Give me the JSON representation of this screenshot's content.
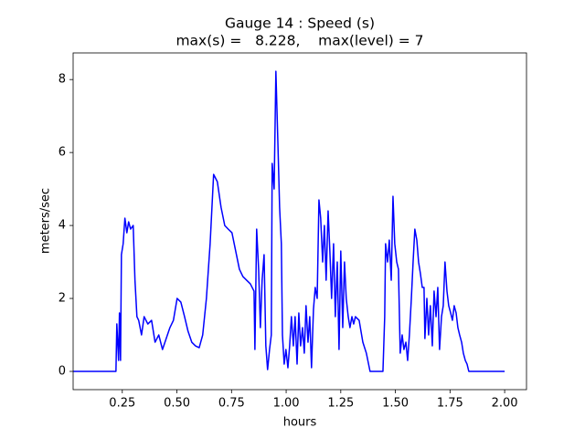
{
  "chart_data": {
    "type": "line",
    "title": "Gauge 14 : Speed (s)",
    "subtitle": "max(s) =   8.228,    max(level) = 7",
    "x_label": "hours",
    "y_label": "meters/sec",
    "color": "#0000ff",
    "grid": false,
    "xlim": [
      0.025,
      2.1
    ],
    "ylim": [
      -0.5,
      8.73
    ],
    "xticks": [
      0.25,
      {
        "value": 0.5,
        "label": "0.50"
      },
      0.75,
      {
        "value": 1.0,
        "label": "1.00"
      },
      1.25,
      {
        "value": 1.5,
        "label": "1.50"
      },
      1.75,
      {
        "value": 2.0,
        "label": "2.00"
      }
    ],
    "yticks": [
      0,
      2,
      4,
      6,
      8
    ],
    "x": [
      0.025,
      0.221,
      0.225,
      0.233,
      0.237,
      0.242,
      0.246,
      0.254,
      0.262,
      0.271,
      0.279,
      0.288,
      0.3,
      0.308,
      0.317,
      0.325,
      0.338,
      0.35,
      0.367,
      0.384,
      0.4,
      0.417,
      0.434,
      0.451,
      0.468,
      0.484,
      0.501,
      0.518,
      0.535,
      0.551,
      0.568,
      0.585,
      0.602,
      0.618,
      0.635,
      0.652,
      0.668,
      0.685,
      0.702,
      0.719,
      0.735,
      0.752,
      0.769,
      0.786,
      0.802,
      0.819,
      0.836,
      0.853,
      0.857,
      0.865,
      0.874,
      0.882,
      0.89,
      0.899,
      0.907,
      0.915,
      0.924,
      0.932,
      0.936,
      0.945,
      0.953,
      0.962,
      0.97,
      0.978,
      0.983,
      0.991,
      0.999,
      1.008,
      1.016,
      1.024,
      1.033,
      1.041,
      1.05,
      1.058,
      1.066,
      1.075,
      1.083,
      1.091,
      1.1,
      1.108,
      1.116,
      1.125,
      1.133,
      1.142,
      1.15,
      1.158,
      1.167,
      1.175,
      1.183,
      1.192,
      1.2,
      1.208,
      1.217,
      1.225,
      1.234,
      1.242,
      1.25,
      1.259,
      1.267,
      1.275,
      1.284,
      1.292,
      1.301,
      1.309,
      1.317,
      1.334,
      1.351,
      1.367,
      1.384,
      1.443,
      1.451,
      1.455,
      1.464,
      1.472,
      1.481,
      1.489,
      1.497,
      1.506,
      1.514,
      1.522,
      1.531,
      1.539,
      1.548,
      1.556,
      1.564,
      1.573,
      1.581,
      1.589,
      1.598,
      1.606,
      1.614,
      1.623,
      1.631,
      1.635,
      1.644,
      1.652,
      1.66,
      1.669,
      1.677,
      1.686,
      1.694,
      1.702,
      1.711,
      1.719,
      1.727,
      1.736,
      1.744,
      1.753,
      1.761,
      1.769,
      1.778,
      1.786,
      1.794,
      1.803,
      1.811,
      1.82,
      1.828,
      1.836,
      2.0
    ],
    "values": [
      0,
      0,
      1.3,
      0.3,
      1.6,
      0.3,
      3.2,
      3.5,
      4.2,
      3.8,
      4.1,
      3.9,
      4.0,
      2.5,
      1.5,
      1.4,
      1.0,
      1.5,
      1.3,
      1.4,
      0.8,
      1.0,
      0.6,
      0.9,
      1.2,
      1.4,
      2.0,
      1.9,
      1.5,
      1.1,
      0.8,
      0.7,
      0.65,
      1.0,
      2.0,
      3.5,
      5.4,
      5.2,
      4.5,
      4.0,
      3.9,
      3.8,
      3.3,
      2.8,
      2.6,
      2.5,
      2.4,
      2.2,
      0.6,
      3.9,
      2.8,
      1.2,
      2.5,
      3.2,
      0.7,
      0.05,
      0.6,
      1.0,
      5.7,
      5.0,
      8.228,
      6.3,
      4.5,
      3.5,
      1.0,
      0.2,
      0.6,
      0.1,
      0.7,
      1.5,
      0.7,
      1.5,
      0.2,
      1.6,
      0.7,
      1.2,
      0.5,
      1.8,
      0.8,
      1.5,
      0.1,
      1.7,
      2.3,
      2.0,
      4.7,
      4.2,
      3.0,
      4.0,
      2.5,
      4.4,
      3.3,
      2.0,
      3.5,
      1.5,
      3.0,
      0.6,
      3.3,
      1.2,
      3.0,
      2.0,
      1.5,
      1.2,
      1.5,
      1.3,
      1.5,
      1.4,
      0.8,
      0.5,
      0,
      0,
      1.5,
      3.5,
      3.0,
      3.6,
      2.5,
      4.8,
      3.5,
      3.0,
      2.8,
      0.5,
      1.0,
      0.6,
      0.8,
      0.3,
      1.0,
      2.0,
      3.0,
      3.9,
      3.6,
      3.0,
      2.7,
      2.3,
      2.3,
      0.9,
      2.0,
      1.0,
      1.8,
      0.7,
      2.2,
      1.5,
      2.3,
      0.6,
      1.5,
      1.8,
      3.0,
      2.2,
      1.8,
      1.6,
      1.4,
      1.8,
      1.6,
      1.2,
      1.0,
      0.8,
      0.5,
      0.3,
      0.2,
      0,
      0
    ]
  }
}
